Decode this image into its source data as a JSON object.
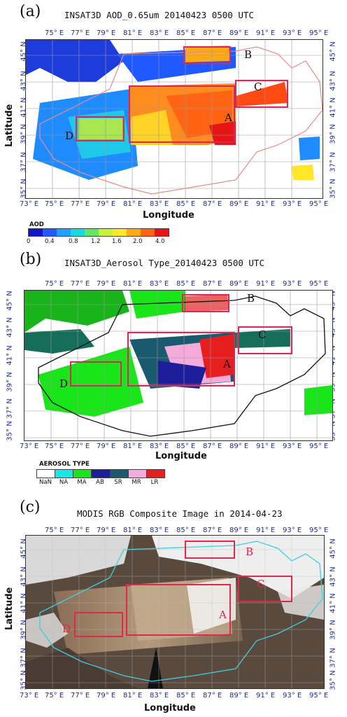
{
  "panels": [
    {
      "letter": "(a)",
      "title": "INSAT3D AOD_0.65um 20140423 0500 UTC",
      "xlabel": "Longitude",
      "ylabel": "Latitude",
      "lon_ticks": [
        "73° E",
        "75° E",
        "77° E",
        "79° E",
        "81° E",
        "83° E",
        "85° E",
        "87° E",
        "89° E",
        "91° E",
        "93° E",
        "95° E"
      ],
      "lat_ticks": [
        "45° N",
        "43° N",
        "41° N",
        "39° N",
        "37° N",
        "35° N"
      ],
      "regions": [
        "A",
        "B",
        "C",
        "D"
      ]
    },
    {
      "letter": "(b)",
      "title": "INSAT3D_Aerosol Type_20140423 0500 UTC",
      "xlabel": "Longitude",
      "ylabel": "",
      "lon_ticks": [
        "73° E",
        "75° E",
        "77° E",
        "79° E",
        "81° E",
        "83° E",
        "85° E",
        "87° E",
        "89° E",
        "91° E",
        "93° E",
        "95° E"
      ],
      "lat_ticks": [
        "45° N",
        "43° N",
        "41° N",
        "39° N",
        "37° N",
        "35° N"
      ],
      "regions": [
        "A",
        "B",
        "C",
        "D"
      ]
    },
    {
      "letter": "(c)",
      "title": "MODIS RGB Composite Image in 2014-04-23",
      "xlabel": "Longitude",
      "ylabel": "Latitude",
      "lon_ticks": [
        "73° E",
        "75° E",
        "77° E",
        "79° E",
        "81° E",
        "83° E",
        "85° E",
        "87° E",
        "89° E",
        "91° E",
        "93° E",
        "95° E"
      ],
      "lat_ticks": [
        "45° N",
        "43° N",
        "41° N",
        "39° N",
        "37° N",
        "35° N"
      ],
      "regions": [
        "A",
        "B",
        "C",
        "D"
      ]
    }
  ],
  "aod_colorbar": {
    "title": "AOD",
    "labels": [
      "0",
      "0.4",
      "0.8",
      "1.2",
      "1.6",
      "2.0",
      "4.0"
    ],
    "colors": [
      "#1414c8",
      "#1e5aff",
      "#1ea0ff",
      "#14dcdc",
      "#64e664",
      "#c8f03c",
      "#ffe628",
      "#ffaa14",
      "#ff6414",
      "#e61414"
    ]
  },
  "aerosol_types": {
    "title": "AEROSOL TYPE",
    "items": [
      {
        "code": "NaN",
        "color": "#ffffff"
      },
      {
        "code": "NA",
        "color": "#19e6e6"
      },
      {
        "code": "MA",
        "color": "#19e619"
      },
      {
        "code": "AB",
        "color": "#1e1e9a"
      },
      {
        "code": "SR",
        "color": "#1a5a6e"
      },
      {
        "code": "MR",
        "color": "#f5aadc"
      },
      {
        "code": "LR",
        "color": "#e61e1e"
      }
    ]
  },
  "colors": {
    "region_box": "#d6285a",
    "tick": "#1b2aa0"
  }
}
